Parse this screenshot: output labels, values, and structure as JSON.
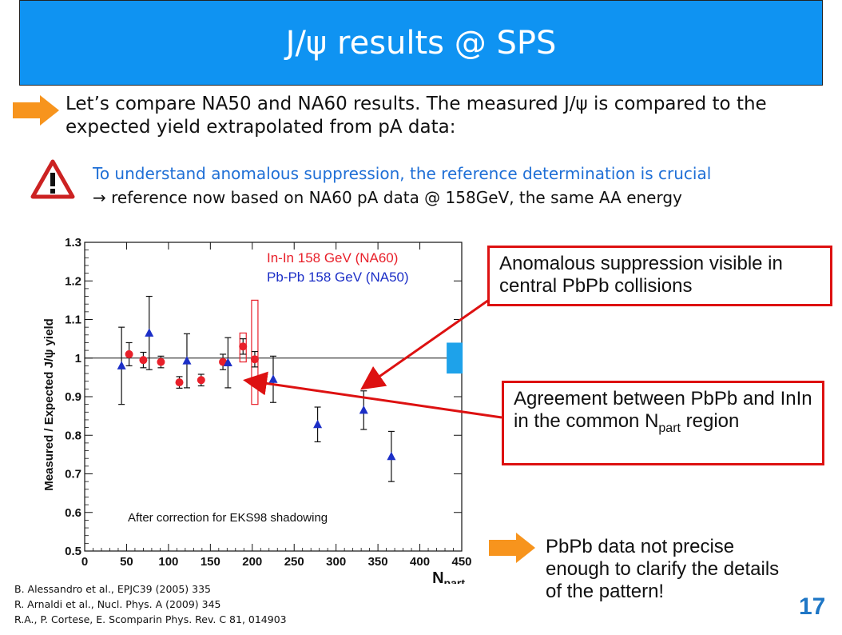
{
  "slide": {
    "title": "J/ψ results @ SPS",
    "intro_text": "Let’s compare NA50 and NA60 results. The measured J/ψ is compared to the expected yield extrapolated from pA data:",
    "warning_line1": "To understand anomalous suppression, the reference determination is crucial",
    "warning_line2": "→ reference now based on NA60 pA data @ 158GeV, the same AA energy",
    "callout1": "Anomalous suppression visible in central PbPb collisions",
    "callout2_main": "Agreement between PbPb and InIn in the common N",
    "callout2_sub": "part",
    "callout2_end": " region",
    "bottom_text": "PbPb data not precise enough to clarify the details of the pattern!",
    "references": [
      "B. Alessandro et al., EPJC39 (2005) 335",
      "R. Arnaldi et al., Nucl. Phys. A (2009) 345",
      "R.A., P. Cortese, E. Scomparin Phys. Rev. C 81, 014903"
    ],
    "page_number": "17",
    "icons": {
      "bullet": "orange-arrow-icon",
      "warning": "warning-triangle-icon"
    },
    "colors": {
      "title_bar": "#0f93f2",
      "arrow": "#f7941d",
      "callout_border": "#dd1111",
      "warning_text": "#1f6fd6"
    }
  },
  "chart_data": {
    "type": "scatter",
    "xlabel_main": "N",
    "xlabel_sub": "part",
    "ylabel": "Measured / Expected J/ψ yield",
    "xlim": [
      0,
      450
    ],
    "ylim": [
      0.5,
      1.3
    ],
    "xticks": [
      "0",
      "50",
      "100",
      "150",
      "200",
      "250",
      "300",
      "350",
      "400",
      "450"
    ],
    "yticks": [
      "0.5",
      "0.6",
      "0.7",
      "0.8",
      "0.9",
      "1",
      "1.1",
      "1.2",
      "1.3"
    ],
    "reference_line": 1,
    "annotation": "After correction for EKS98 shadowing",
    "series": [
      {
        "name": "In-In 158 GeV (NA60)",
        "color": "#e8202a",
        "marker": "circle",
        "points": [
          {
            "x": 53,
            "y": 1.01,
            "err": 0.03
          },
          {
            "x": 70,
            "y": 0.995,
            "err": 0.02
          },
          {
            "x": 91,
            "y": 0.99,
            "err": 0.015
          },
          {
            "x": 113,
            "y": 0.937,
            "err": 0.015
          },
          {
            "x": 139,
            "y": 0.943,
            "err": 0.015
          },
          {
            "x": 165,
            "y": 0.99,
            "err": 0.02
          },
          {
            "x": 189,
            "y": 1.03,
            "err": 0.02
          },
          {
            "x": 203,
            "y": 0.997,
            "err": 0.02
          }
        ],
        "syst_boxes": [
          {
            "x": 189,
            "low": 0.99,
            "high": 1.065
          },
          {
            "x": 203,
            "low": 0.88,
            "high": 1.15
          }
        ]
      },
      {
        "name": "Pb-Pb 158 GeV (NA50)",
        "color": "#1c2fc7",
        "marker": "triangle",
        "points": [
          {
            "x": 44,
            "y": 0.98,
            "err": 0.1
          },
          {
            "x": 77,
            "y": 1.065,
            "err": 0.095
          },
          {
            "x": 122,
            "y": 0.993,
            "err": 0.07
          },
          {
            "x": 171,
            "y": 0.988,
            "err": 0.065
          },
          {
            "x": 225,
            "y": 0.945,
            "err": 0.06
          },
          {
            "x": 278,
            "y": 0.828,
            "err": 0.045
          },
          {
            "x": 333,
            "y": 0.865,
            "err": 0.05
          },
          {
            "x": 366,
            "y": 0.745,
            "err": 0.065
          }
        ]
      }
    ],
    "global_syst": {
      "color": "#1ea2ea",
      "low": 0.96,
      "high": 1.04
    }
  }
}
